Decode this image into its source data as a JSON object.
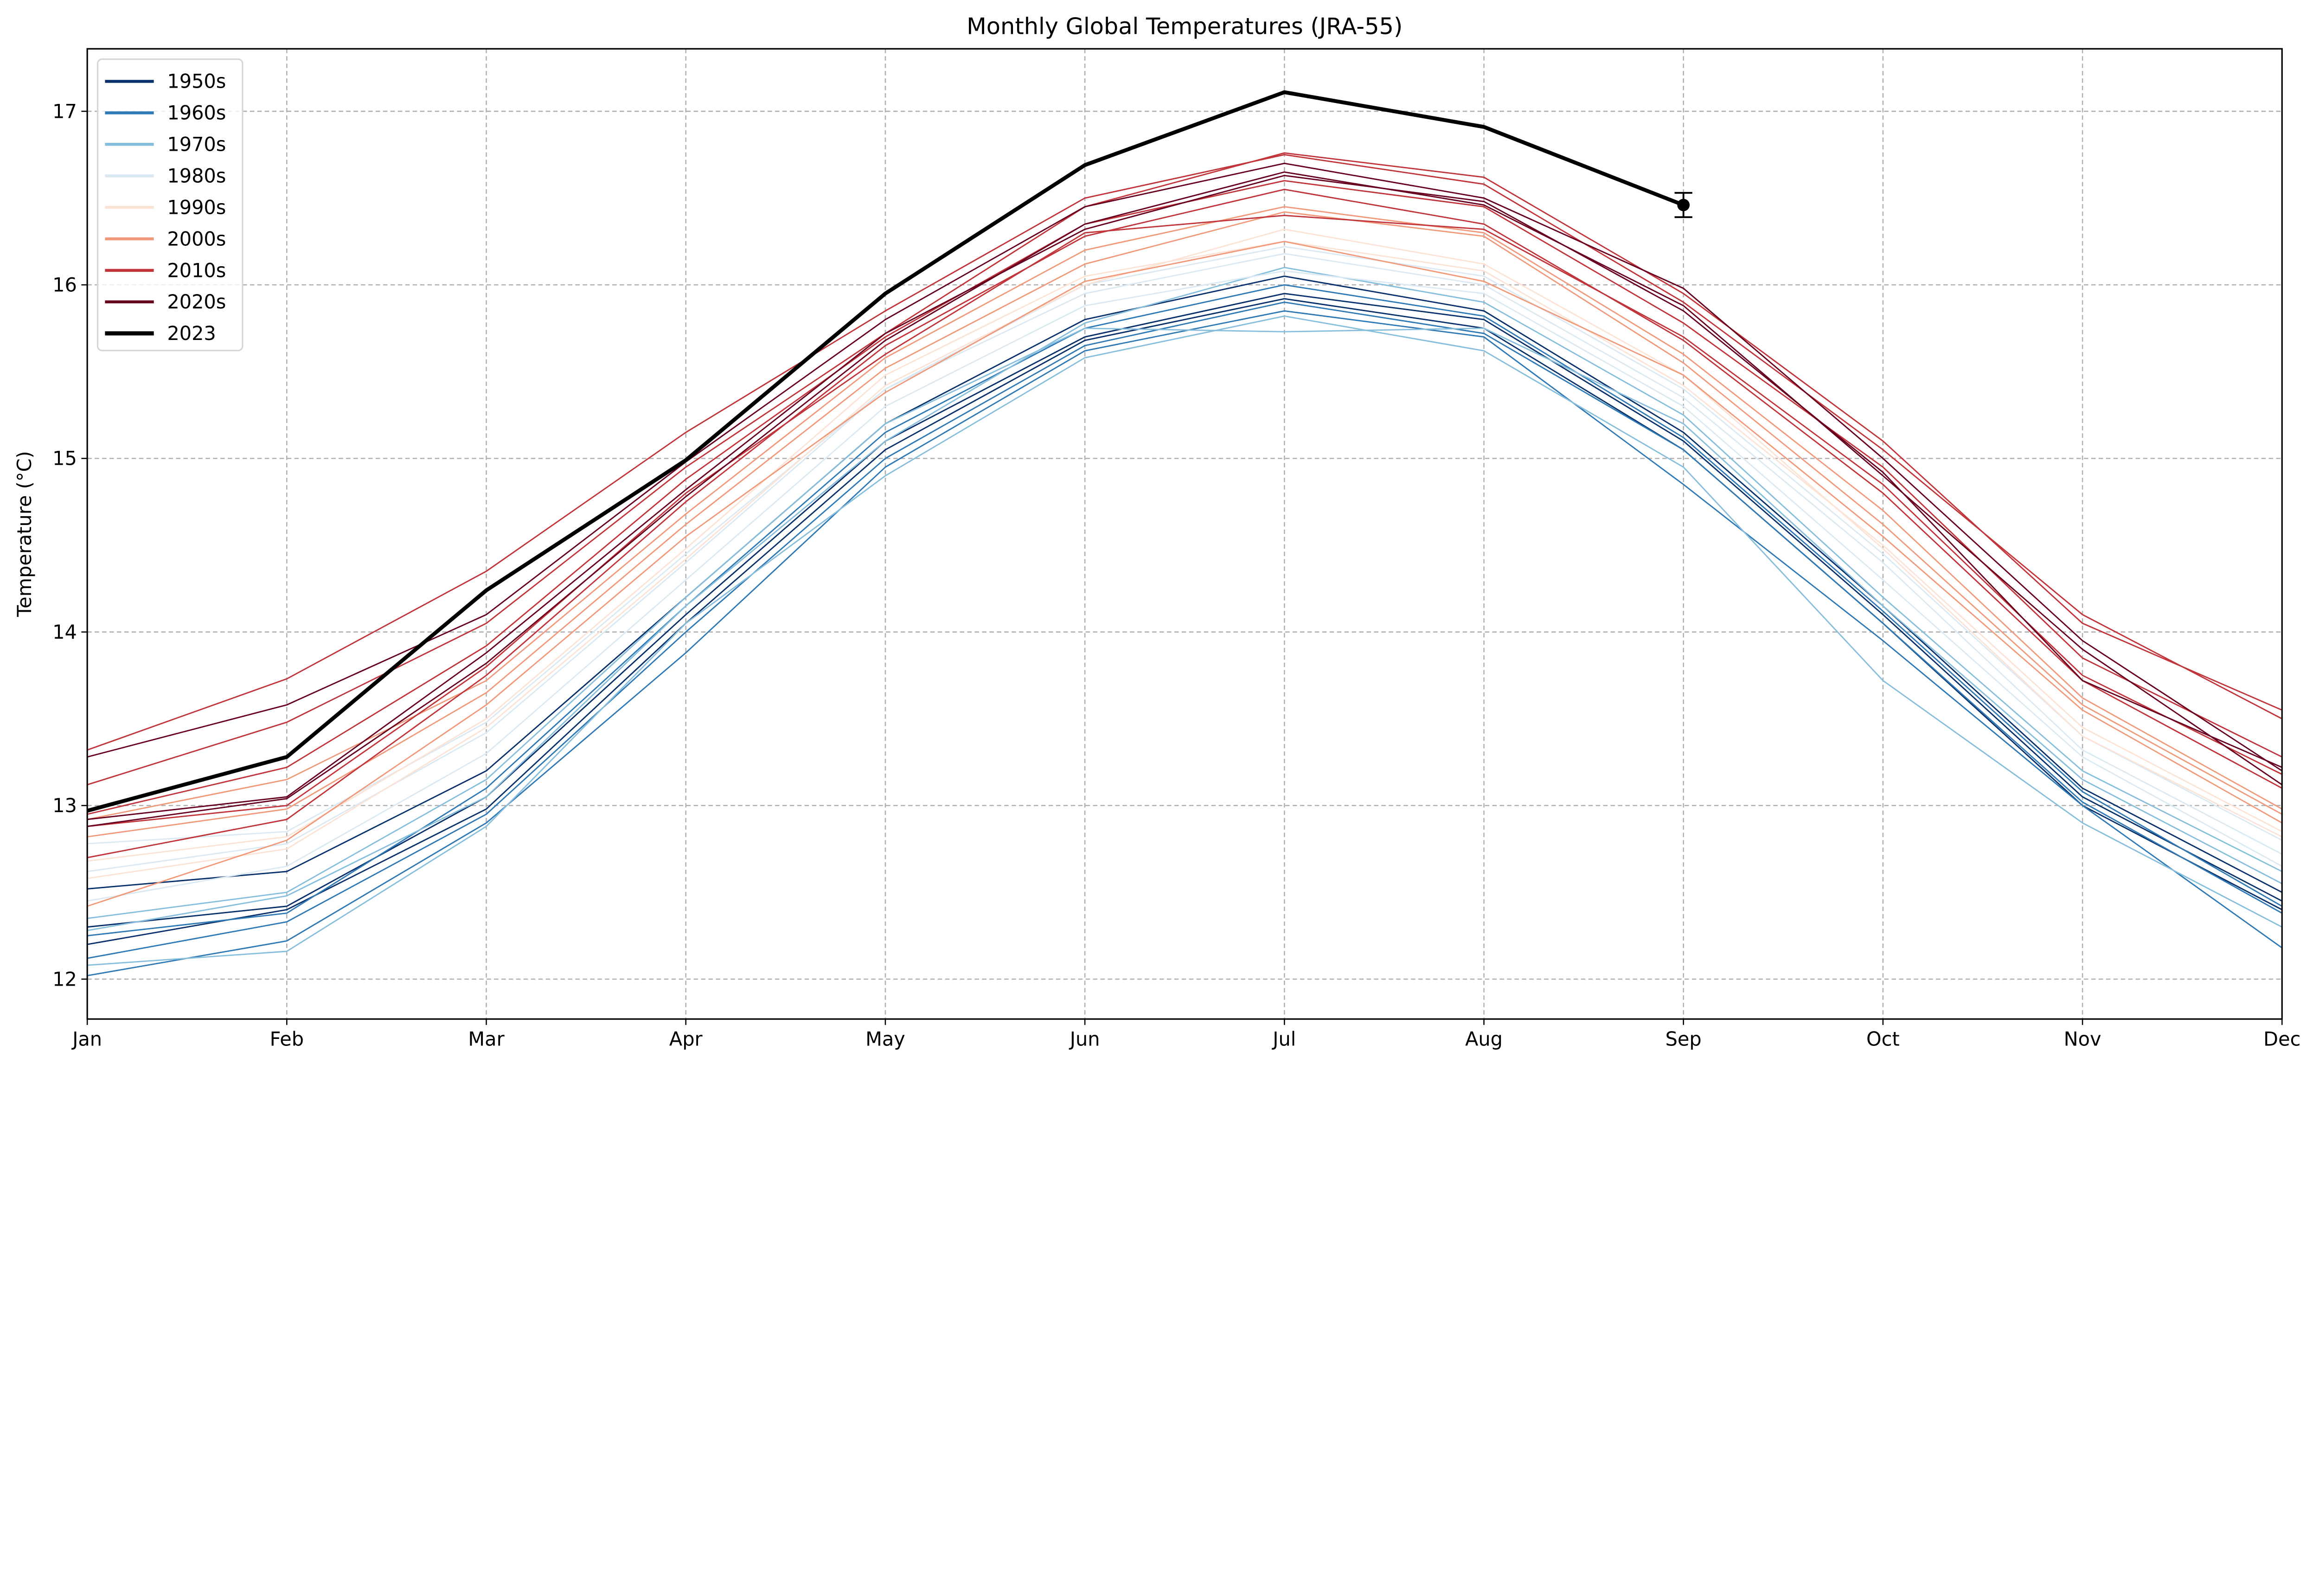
{
  "chart_data": {
    "type": "line",
    "title": "Monthly Global Temperatures (JRA-55)",
    "xlabel": "",
    "ylabel": "Temperature (°C)",
    "categories": [
      "Jan",
      "Feb",
      "Mar",
      "Apr",
      "May",
      "Jun",
      "Jul",
      "Aug",
      "Sep",
      "Oct",
      "Nov",
      "Dec"
    ],
    "ylim": [
      11.77,
      17.36
    ],
    "yticks": [
      12,
      13,
      14,
      15,
      16,
      17
    ],
    "grid": true,
    "legend": {
      "placement": "top-left",
      "entries": [
        {
          "label": "1950s",
          "color": "#08306b"
        },
        {
          "label": "1960s",
          "color": "#2f79b5"
        },
        {
          "label": "1970s",
          "color": "#87bedc"
        },
        {
          "label": "1980s",
          "color": "#dbe9f3"
        },
        {
          "label": "1990s",
          "color": "#fbe3d6"
        },
        {
          "label": "2000s",
          "color": "#f09a7b"
        },
        {
          "label": "2010s",
          "color": "#c1343a"
        },
        {
          "label": "2020s",
          "color": "#67001f"
        },
        {
          "label": "2023",
          "color": "#000000"
        }
      ]
    },
    "series": [
      {
        "decade": "1950s",
        "values": [
          12.3,
          12.42,
          13.05,
          14.1,
          15.1,
          15.7,
          15.95,
          15.8,
          15.1,
          14.1,
          13.05,
          12.45
        ]
      },
      {
        "decade": "1950s",
        "values": [
          12.52,
          12.62,
          13.2,
          14.2,
          15.2,
          15.8,
          16.05,
          15.85,
          15.15,
          14.15,
          13.1,
          12.5
        ]
      },
      {
        "decade": "1950s",
        "values": [
          12.2,
          12.4,
          12.98,
          14.05,
          15.05,
          15.68,
          15.92,
          15.75,
          15.05,
          14.05,
          13.0,
          12.4
        ]
      },
      {
        "decade": "1960s",
        "values": [
          12.12,
          12.33,
          12.95,
          14.0,
          15.0,
          15.65,
          15.9,
          15.72,
          15.05,
          14.05,
          13.02,
          12.38
        ]
      },
      {
        "decade": "1960s",
        "values": [
          12.02,
          12.22,
          12.9,
          13.88,
          14.95,
          15.62,
          15.85,
          15.7,
          14.85,
          13.95,
          13.0,
          12.18
        ]
      },
      {
        "decade": "1960s",
        "values": [
          12.25,
          12.38,
          13.1,
          14.15,
          15.15,
          15.75,
          16.0,
          15.82,
          15.12,
          14.12,
          13.08,
          12.42
        ]
      },
      {
        "decade": "1970s",
        "values": [
          12.08,
          12.16,
          12.88,
          14.05,
          14.9,
          15.58,
          15.82,
          15.62,
          14.95,
          13.72,
          12.9,
          12.3
        ]
      },
      {
        "decade": "1970s",
        "values": [
          12.35,
          12.5,
          13.15,
          14.2,
          15.2,
          15.75,
          15.73,
          15.75,
          15.2,
          14.15,
          13.15,
          12.55
        ]
      },
      {
        "decade": "1970s",
        "values": [
          12.28,
          12.48,
          13.05,
          14.15,
          15.1,
          15.78,
          16.1,
          15.9,
          15.25,
          14.2,
          13.2,
          12.62
        ]
      },
      {
        "decade": "1980s",
        "values": [
          12.62,
          12.78,
          13.42,
          14.4,
          15.4,
          15.95,
          16.18,
          16.0,
          15.35,
          14.4,
          13.32,
          12.72
        ]
      },
      {
        "decade": "1980s",
        "values": [
          12.45,
          12.65,
          13.3,
          14.3,
          15.3,
          15.88,
          16.08,
          15.95,
          15.3,
          14.3,
          13.28,
          12.65
        ]
      },
      {
        "decade": "1980s",
        "values": [
          12.78,
          12.85,
          13.48,
          14.45,
          15.4,
          16.0,
          16.22,
          16.05,
          15.4,
          14.45,
          13.4,
          12.8
        ]
      },
      {
        "decade": "1990s",
        "values": [
          12.68,
          12.82,
          13.5,
          14.48,
          15.48,
          16.05,
          16.25,
          16.08,
          15.42,
          14.5,
          13.45,
          12.85
        ]
      },
      {
        "decade": "1990s",
        "values": [
          12.58,
          12.75,
          13.45,
          14.42,
          15.42,
          16.0,
          16.32,
          16.12,
          15.48,
          14.48,
          13.4,
          12.82
        ]
      },
      {
        "decade": "2000s",
        "values": [
          12.82,
          12.98,
          13.65,
          14.62,
          15.52,
          16.12,
          16.42,
          16.28,
          15.55,
          14.62,
          13.58,
          12.95
        ]
      },
      {
        "decade": "2000s",
        "values": [
          12.42,
          12.8,
          13.58,
          14.55,
          15.38,
          16.02,
          16.25,
          16.02,
          15.48,
          14.55,
          13.55,
          12.9
        ]
      },
      {
        "decade": "2000s",
        "values": [
          12.92,
          13.15,
          13.72,
          14.68,
          15.58,
          16.2,
          16.45,
          16.3,
          15.6,
          14.7,
          13.62,
          12.98
        ]
      },
      {
        "decade": "2010s",
        "values": [
          12.7,
          12.92,
          13.75,
          14.75,
          15.65,
          16.28,
          16.55,
          16.35,
          15.68,
          14.8,
          13.72,
          13.1
        ]
      },
      {
        "decade": "2010s",
        "values": [
          13.12,
          13.48,
          14.05,
          14.95,
          15.72,
          16.45,
          16.76,
          16.62,
          15.95,
          15.1,
          14.05,
          13.55
        ]
      },
      {
        "decade": "2010s",
        "values": [
          12.95,
          13.22,
          13.92,
          14.88,
          15.7,
          16.35,
          16.6,
          16.45,
          15.78,
          14.95,
          13.85,
          13.28
        ]
      },
      {
        "decade": "2010s",
        "values": [
          13.32,
          13.73,
          14.35,
          15.15,
          15.85,
          16.5,
          16.75,
          16.58,
          15.9,
          15.05,
          14.1,
          13.5
        ]
      },
      {
        "decade": "2010s",
        "values": [
          12.88,
          13.0,
          13.8,
          14.8,
          15.6,
          16.3,
          16.4,
          16.32,
          15.7,
          14.85,
          13.75,
          13.18
        ]
      },
      {
        "decade": "2020s",
        "values": [
          13.28,
          13.58,
          14.1,
          14.98,
          15.8,
          16.45,
          16.7,
          16.5,
          15.98,
          15.0,
          13.95,
          13.2
        ]
      },
      {
        "decade": "2020s",
        "values": [
          12.92,
          13.05,
          13.88,
          14.82,
          15.72,
          16.32,
          16.63,
          16.48,
          15.85,
          14.92,
          13.72,
          13.22
        ]
      },
      {
        "decade": "2020s",
        "values": [
          12.88,
          13.04,
          13.82,
          14.78,
          15.68,
          16.35,
          16.65,
          16.46,
          15.88,
          14.9,
          13.9,
          13.12
        ]
      }
    ],
    "highlight": {
      "label": "2023",
      "values": [
        12.97,
        13.28,
        14.24,
        14.99,
        15.95,
        16.69,
        17.11,
        16.91,
        16.46
      ]
    },
    "errorbar": {
      "month": "Sep",
      "value": 16.46,
      "error": 0.07
    }
  }
}
